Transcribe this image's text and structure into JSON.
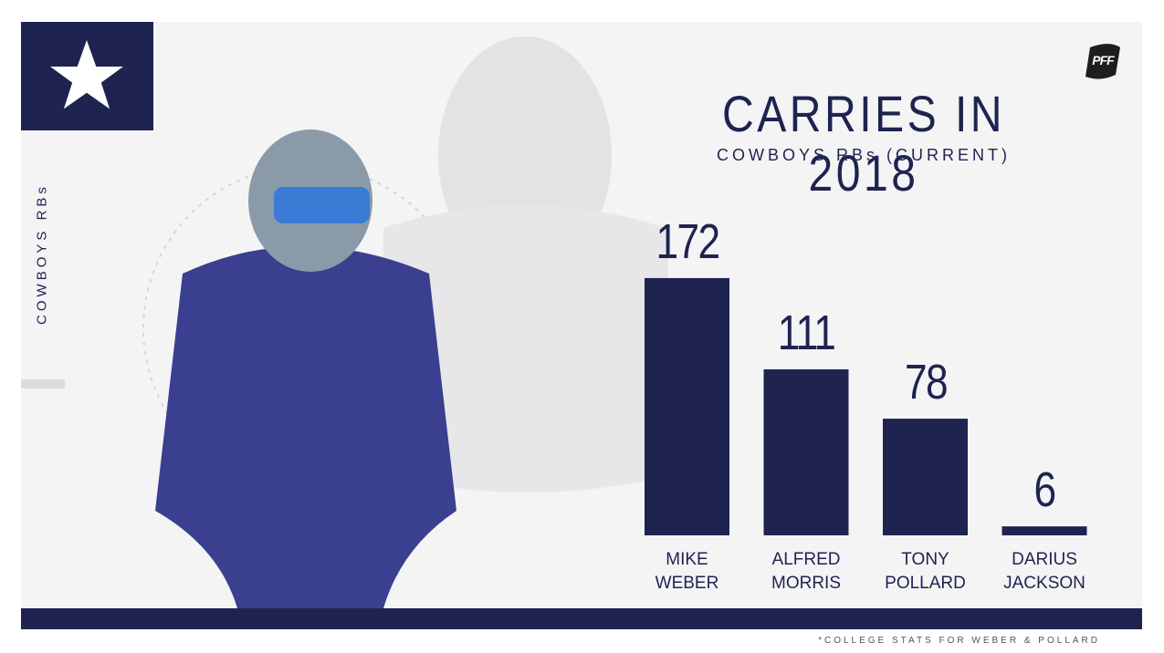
{
  "chart_data": {
    "type": "bar",
    "title": "CARRIES IN 2018",
    "subtitle": "COWBOYS RBs (CURRENT)",
    "side_label": "COWBOYS RBs",
    "footnote": "*COLLEGE STATS FOR WEBER & POLLARD",
    "brand": "PFF",
    "categories": [
      "MIKE\nWEBER",
      "ALFRED\nMORRIS",
      "TONY\nPOLLARD",
      "DARIUS\nJACKSON"
    ],
    "values": [
      172,
      111,
      78,
      6
    ],
    "color": "#1e2350"
  }
}
